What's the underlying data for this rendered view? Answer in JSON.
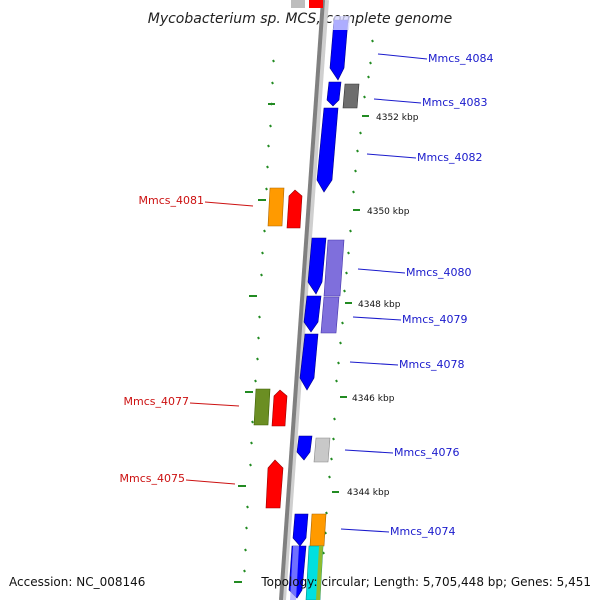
{
  "title": "Mycobacterium sp. MCS, complete genome",
  "footer": {
    "accession": "Accession: NC_008146",
    "topology": "Topology: circular; Length: 5,705,448 bp; Genes: 5,451"
  },
  "colors": {
    "backbone": "#808080",
    "tick": "#228b22",
    "blue_gene": "#0000ff",
    "red_gene": "#ff0000",
    "label_blue": "#1a1acc",
    "label_red": "#cc1111"
  },
  "kbp_labels": [
    "4352 kbp",
    "4350 kbp",
    "4348 kbp",
    "4346 kbp",
    "4344 kbp"
  ],
  "gene_labels_right": [
    "Mmcs_4084",
    "Mmcs_4083",
    "Mmcs_4082",
    "Mmcs_4080",
    "Mmcs_4079",
    "Mmcs_4078",
    "Mmcs_4076",
    "Mmcs_4074"
  ],
  "gene_labels_left": [
    "Mmcs_4081",
    "Mmcs_4077",
    "Mmcs_4075"
  ]
}
